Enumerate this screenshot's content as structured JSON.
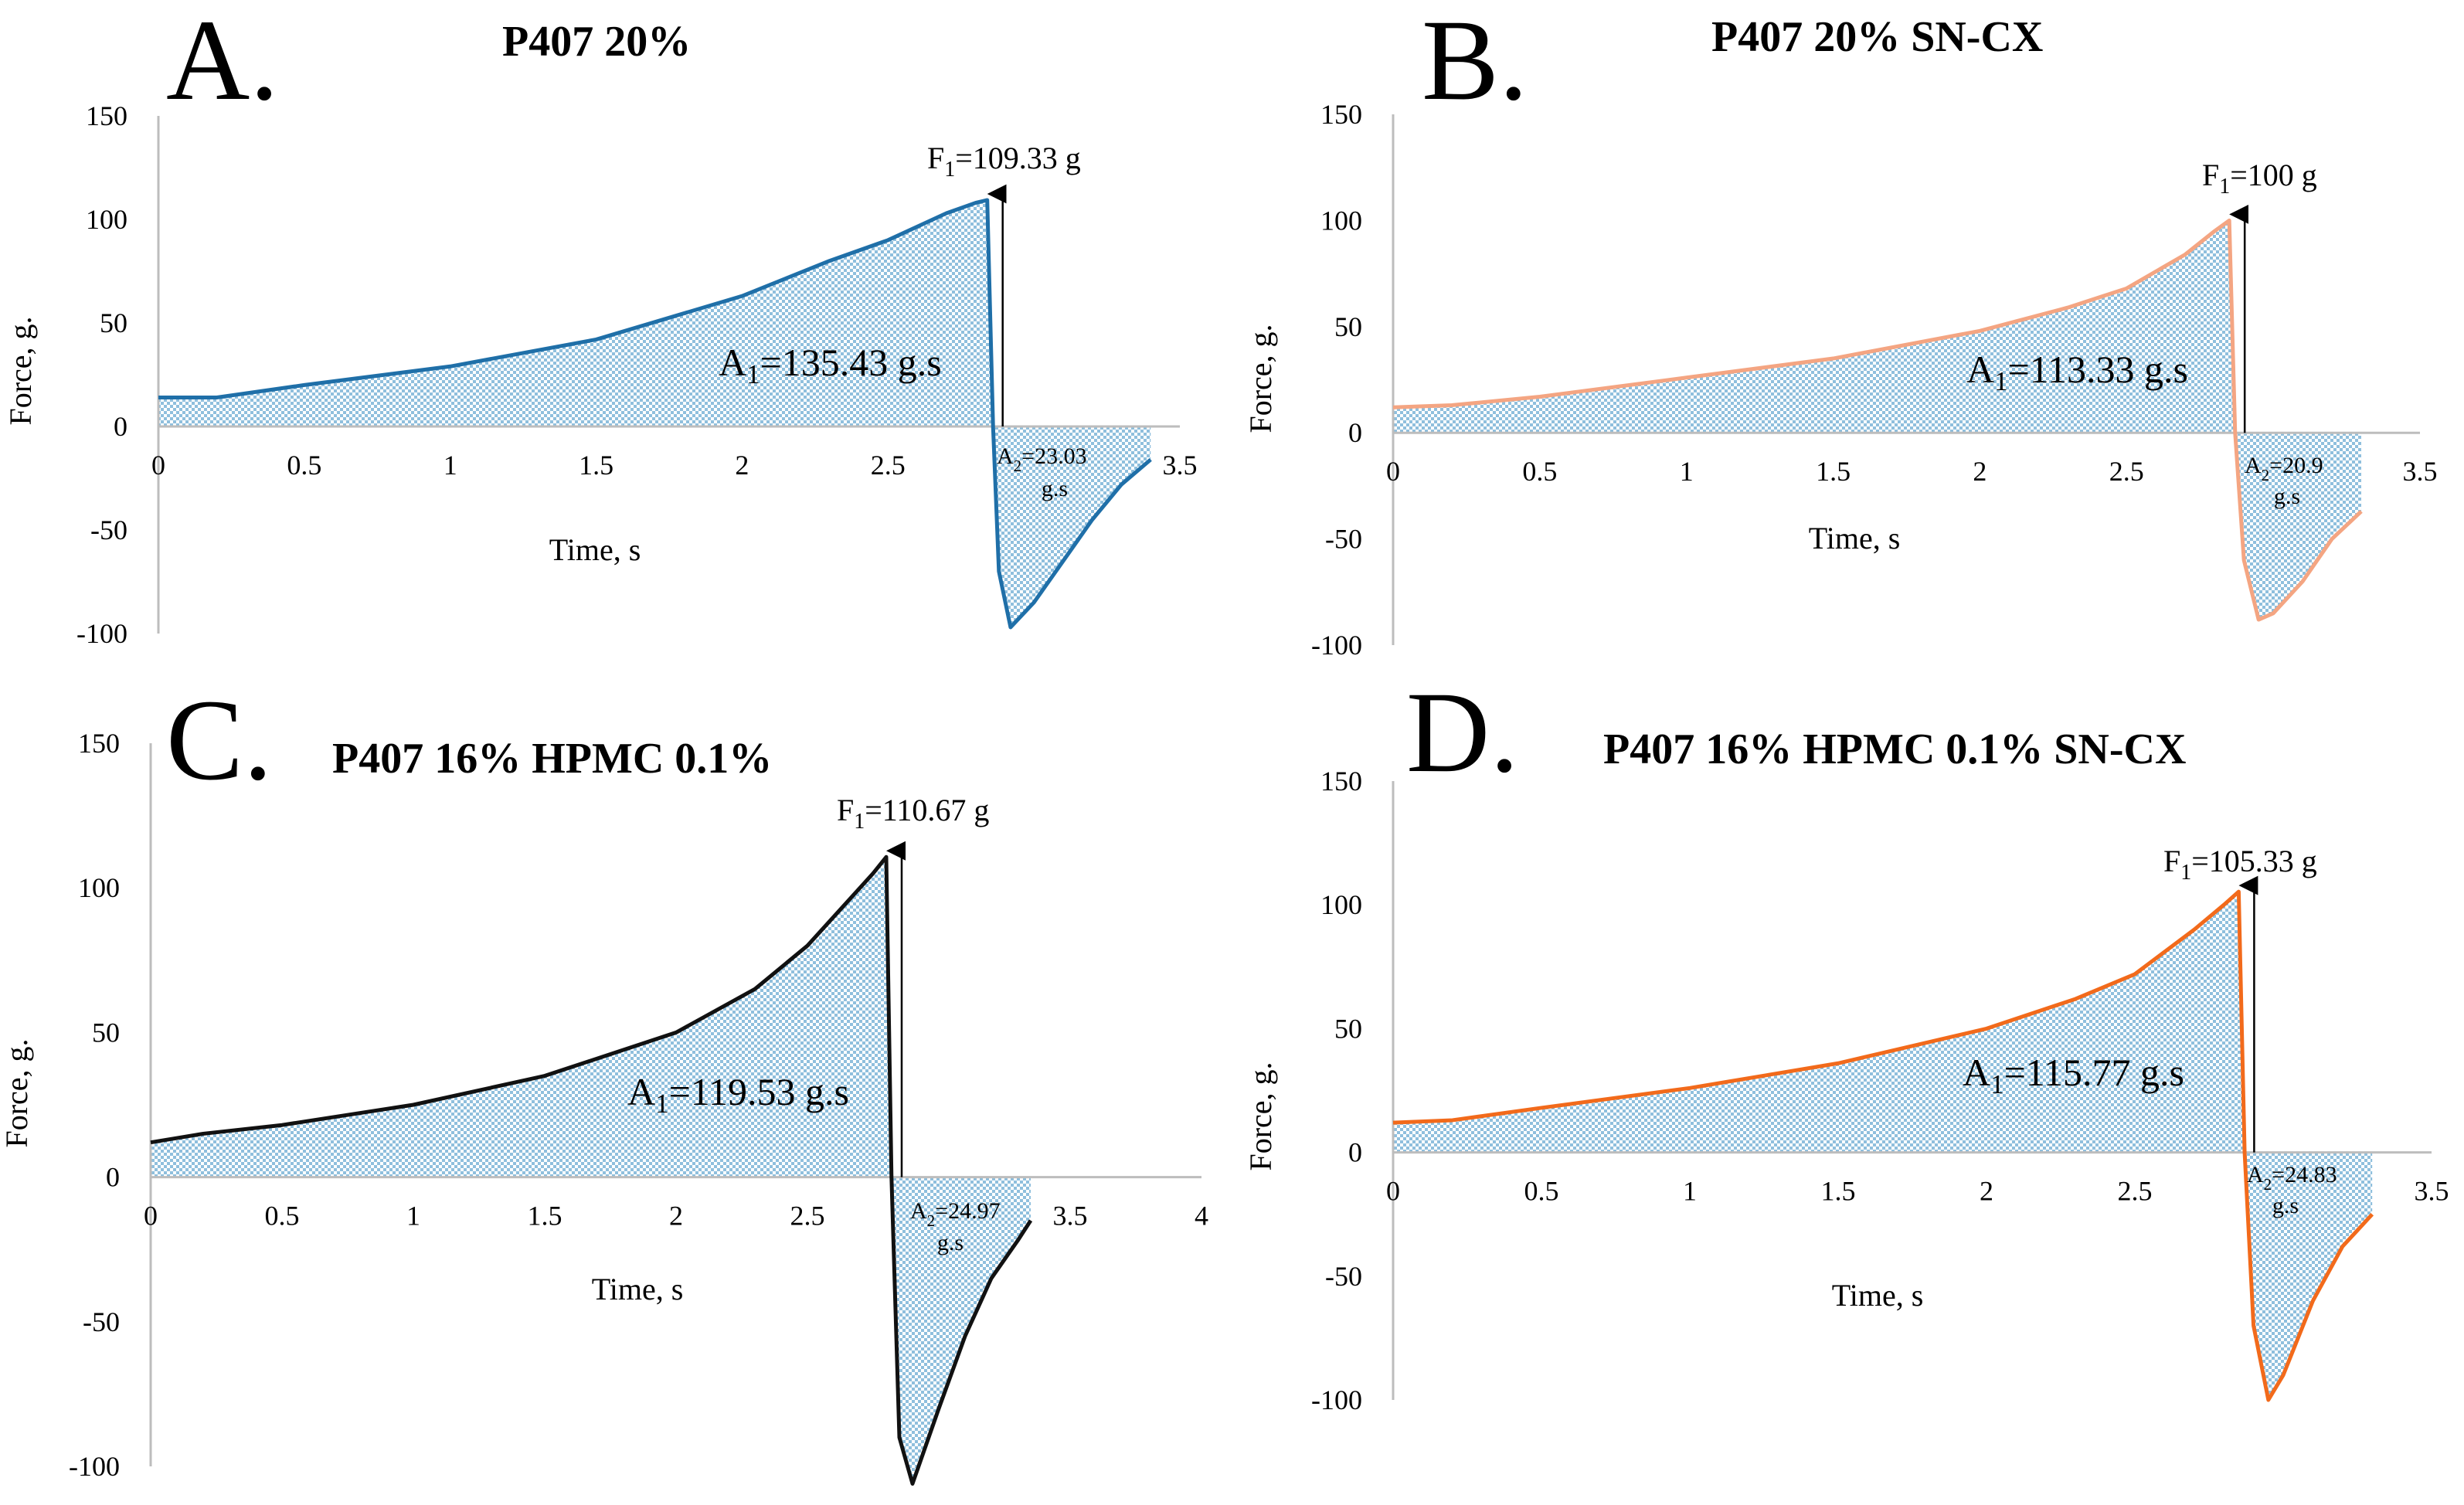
{
  "chart_data": [
    {
      "type": "area",
      "panel_letter": "A.",
      "title": "P407 20%",
      "xlabel": "Time, s",
      "ylabel": "Force, g.",
      "xlim": [
        0,
        3.5
      ],
      "ylim": [
        -100,
        150
      ],
      "x_ticks": [
        "0",
        "0.5",
        "1",
        "1.5",
        "2",
        "2.5",
        "3.5"
      ],
      "y_ticks": [
        "150",
        "100",
        "50",
        "0",
        "-50",
        "-100"
      ],
      "line_color": "#1f6fa8",
      "fill_color": "#9ec9e2",
      "series": [
        {
          "name": "P407 20%",
          "x": [
            0,
            0.2,
            0.5,
            1.0,
            1.5,
            2.0,
            2.3,
            2.5,
            2.7,
            2.8,
            2.84,
            2.86,
            2.88,
            2.92,
            3.0,
            3.2,
            3.3,
            3.4
          ],
          "y": [
            14,
            14,
            20,
            29,
            42,
            63,
            80,
            90,
            103,
            108,
            109.33,
            0,
            -70,
            -97,
            -85,
            -45,
            -28,
            -16
          ]
        }
      ],
      "annotations": {
        "f1_prefix": "F",
        "f1_sub": "1",
        "f1_value": "=109.33 g",
        "a1_prefix": "A",
        "a1_sub": "1",
        "a1_value": "=135.43 g.s",
        "a2_prefix": "A",
        "a2_sub": "2",
        "a2_value": "=23.03",
        "a2_unit": "g.s"
      }
    },
    {
      "type": "area",
      "panel_letter": "B.",
      "title": "P407 20% SN-CX",
      "xlabel": "Time, s",
      "ylabel": "Force, g.",
      "xlim": [
        0,
        3.5
      ],
      "ylim": [
        -100,
        150
      ],
      "x_ticks": [
        "0",
        "0.5",
        "1",
        "1.5",
        "2",
        "2.5",
        "3.5"
      ],
      "y_ticks": [
        "150",
        "100",
        "50",
        "0",
        "-50",
        "-100"
      ],
      "line_color": "#f4a582",
      "fill_color": "#9ec9e2",
      "series": [
        {
          "name": "P407 20% SN-CX",
          "x": [
            0,
            0.2,
            0.5,
            1.0,
            1.5,
            2.0,
            2.3,
            2.5,
            2.7,
            2.8,
            2.85,
            2.87,
            2.9,
            2.95,
            3.0,
            3.1,
            3.2,
            3.3
          ],
          "y": [
            12,
            13,
            17,
            26,
            35,
            48,
            59,
            68,
            84,
            95,
            100,
            0,
            -60,
            -88,
            -85,
            -70,
            -50,
            -37
          ]
        }
      ],
      "annotations": {
        "f1_prefix": "F",
        "f1_sub": "1",
        "f1_value": "=100 g",
        "a1_prefix": "A",
        "a1_sub": "1",
        "a1_value": "=113.33 g.s",
        "a2_prefix": "A",
        "a2_sub": "2",
        "a2_value": "=20.9",
        "a2_unit": "g.s"
      }
    },
    {
      "type": "area",
      "panel_letter": "C.",
      "title": "P407 16% HPMC 0.1%",
      "xlabel": "Time, s",
      "ylabel": "Force, g.",
      "xlim": [
        0,
        4
      ],
      "ylim": [
        -100,
        150
      ],
      "x_ticks": [
        "0",
        "0.5",
        "1",
        "1.5",
        "2",
        "2.5",
        "3.5",
        "4"
      ],
      "y_ticks": [
        "150",
        "100",
        "50",
        "0",
        "-50",
        "-100"
      ],
      "line_color": "#111111",
      "fill_color": "#9ec9e2",
      "series": [
        {
          "name": "P407 16% HPMC 0.1%",
          "x": [
            0,
            0.2,
            0.5,
            1.0,
            1.5,
            2.0,
            2.3,
            2.5,
            2.65,
            2.75,
            2.8,
            2.82,
            2.85,
            2.9,
            3.0,
            3.1,
            3.2,
            3.3,
            3.35
          ],
          "y": [
            12,
            15,
            18,
            25,
            35,
            50,
            65,
            80,
            95,
            105,
            110.67,
            0,
            -90,
            -106,
            -80,
            -55,
            -35,
            -22,
            -15
          ]
        }
      ],
      "annotations": {
        "f1_prefix": "F",
        "f1_sub": "1",
        "f1_value": "=110.67 g",
        "a1_prefix": "A",
        "a1_sub": "1",
        "a1_value": "=119.53 g.s",
        "a2_prefix": "A",
        "a2_sub": "2",
        "a2_value": "=24.97",
        "a2_unit": "g.s"
      }
    },
    {
      "type": "area",
      "panel_letter": "D.",
      "title": "P407 16% HPMC 0.1% SN-CX",
      "xlabel": "Time, s",
      "ylabel": "Force, g.",
      "xlim": [
        0,
        3.5
      ],
      "ylim": [
        -100,
        150
      ],
      "x_ticks": [
        "0",
        "0.5",
        "1",
        "1.5",
        "2",
        "2.5",
        "3.5"
      ],
      "y_ticks": [
        "150",
        "100",
        "50",
        "0",
        "-50",
        "-100"
      ],
      "line_color": "#f26a1b",
      "fill_color": "#9ec9e2",
      "series": [
        {
          "name": "P407 16% HPMC 0.1% SN-CX",
          "x": [
            0,
            0.2,
            0.5,
            1.0,
            1.5,
            2.0,
            2.3,
            2.5,
            2.7,
            2.8,
            2.85,
            2.87,
            2.9,
            2.95,
            3.0,
            3.1,
            3.2,
            3.3
          ],
          "y": [
            12,
            13,
            18,
            26,
            36,
            50,
            62,
            72,
            90,
            100,
            105.33,
            0,
            -70,
            -100,
            -90,
            -60,
            -38,
            -25
          ]
        }
      ],
      "annotations": {
        "f1_prefix": "F",
        "f1_sub": "1",
        "f1_value": "=105.33 g",
        "a1_prefix": "A",
        "a1_sub": "1",
        "a1_value": "=115.77 g.s",
        "a2_prefix": "A",
        "a2_sub": "2",
        "a2_value": "=24.83",
        "a2_unit": "g.s"
      }
    }
  ]
}
